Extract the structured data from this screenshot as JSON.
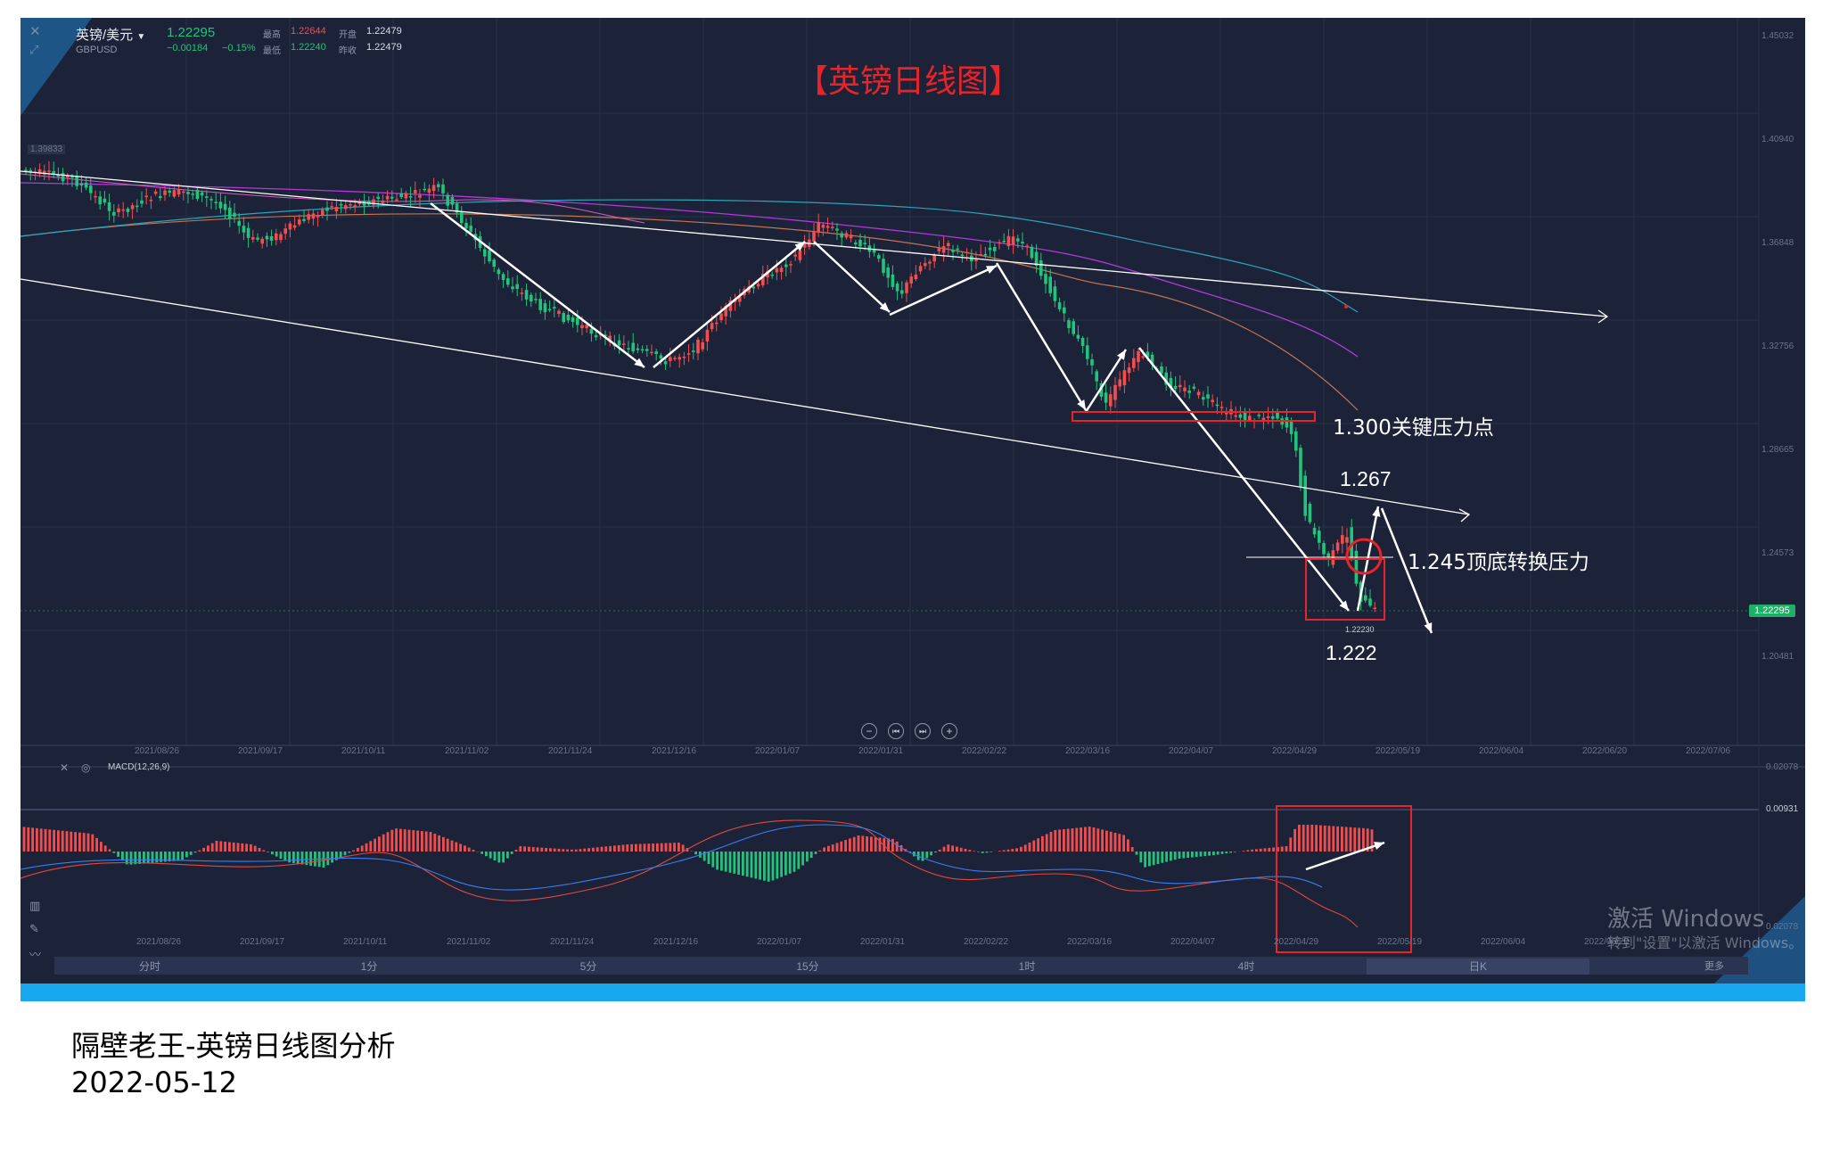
{
  "header": {
    "symbol_name": "英镑/美元",
    "symbol_code": "GBPUSD",
    "last_price": "1.22295",
    "change": "−0.00184",
    "change_pct": "−0.15%",
    "stats": [
      {
        "label": "最高",
        "value": "1.22644",
        "color": "#f24e4e"
      },
      {
        "label": "开盘",
        "value": "1.22479",
        "color": "#d8dce6"
      },
      {
        "label": "最低",
        "value": "1.22240",
        "color": "#22c37a"
      },
      {
        "label": "昨收",
        "value": "1.22479",
        "color": "#d8dce6"
      }
    ]
  },
  "chart_title": "【英镑日线图】",
  "price_axis": [
    "1.45032",
    "1.40940",
    "1.36848",
    "1.32756",
    "1.28665",
    "1.24573",
    "1.20481"
  ],
  "left_axis_label": "1.39833",
  "current_price_tag": "1.22295",
  "low_marker": "1.22230",
  "dates": [
    "2021/08/26",
    "2021/09/17",
    "2021/10/11",
    "2021/11/02",
    "2021/11/24",
    "2021/12/16",
    "2022/01/07",
    "2022/01/31",
    "2022/02/22",
    "2022/03/16",
    "2022/04/07",
    "2022/04/29",
    "2022/05/19",
    "2022/06/04",
    "2022/06/20",
    "2022/07/06"
  ],
  "annotations": {
    "key_pressure": "1.300关键压力点",
    "level_1267": "1.267",
    "flip_pressure": "1.245顶底转换压力",
    "level_1222": "1.222"
  },
  "macd": {
    "title": "MACD(12,26,9)",
    "axis": [
      "0.02078",
      "0.00931",
      "0.02078"
    ]
  },
  "timeframes": [
    "分时",
    "1分",
    "5分",
    "15分",
    "1时",
    "4时",
    "日K",
    "更多"
  ],
  "active_timeframe": "日K",
  "watermark": {
    "line1": "激活 Windows",
    "line2": "转到\"设置\"以激活 Windows。"
  },
  "caption": {
    "title": "隔壁老王-英镑日线图分析",
    "date": "2022-05-12"
  },
  "colors": {
    "background": "#1c2338",
    "up": "#f24e4e",
    "down": "#22c37a",
    "accent_blue": "#18a8f0",
    "annotation_red": "#e8242a"
  }
}
